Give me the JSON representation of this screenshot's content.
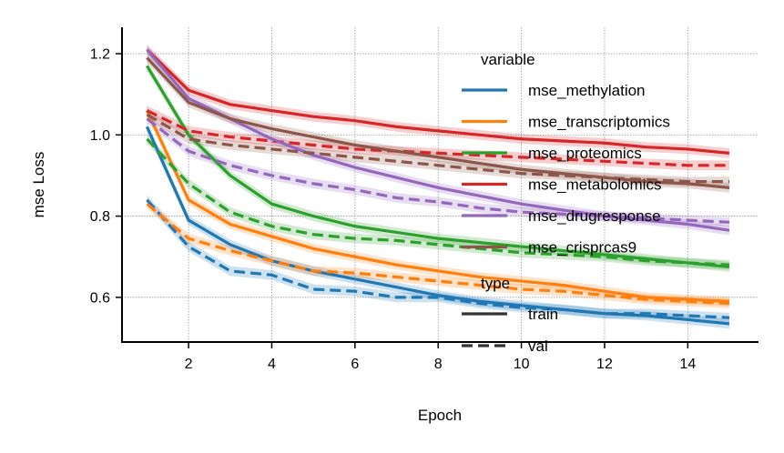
{
  "chart_data": {
    "type": "line",
    "xlabel": "Epoch",
    "ylabel": "mse Loss",
    "xlim": [
      0.4,
      15.7
    ],
    "ylim": [
      0.49,
      1.265
    ],
    "xticks": [
      2,
      4,
      6,
      8,
      10,
      12,
      14
    ],
    "yticks": [
      0.6,
      0.8,
      1.0,
      1.2
    ],
    "grid": true,
    "legend_position": "upper-right",
    "legend": {
      "variable_title": "variable",
      "type_title": "type",
      "types": [
        {
          "name": "train",
          "dash": "solid"
        },
        {
          "name": "val",
          "dash": "dashed"
        }
      ]
    },
    "x": [
      1,
      2,
      3,
      4,
      5,
      6,
      7,
      8,
      9,
      10,
      11,
      12,
      13,
      14,
      15
    ],
    "series": [
      {
        "name": "mse_methylation",
        "color": "#1f77b4",
        "train": [
          1.02,
          0.79,
          0.73,
          0.69,
          0.665,
          0.645,
          0.625,
          0.605,
          0.59,
          0.58,
          0.57,
          0.56,
          0.555,
          0.545,
          0.535
        ],
        "val": [
          0.84,
          0.725,
          0.665,
          0.655,
          0.62,
          0.615,
          0.6,
          0.6,
          0.585,
          0.575,
          0.57,
          0.56,
          0.56,
          0.555,
          0.55
        ]
      },
      {
        "name": "mse_transcriptomics",
        "color": "#ff7f0e",
        "train": [
          1.06,
          0.84,
          0.78,
          0.75,
          0.72,
          0.7,
          0.68,
          0.665,
          0.65,
          0.64,
          0.63,
          0.615,
          0.6,
          0.595,
          0.59
        ],
        "val": [
          0.83,
          0.745,
          0.715,
          0.69,
          0.665,
          0.66,
          0.65,
          0.64,
          0.63,
          0.62,
          0.615,
          0.605,
          0.595,
          0.59,
          0.585
        ]
      },
      {
        "name": "mse_proteomics",
        "color": "#2ca02c",
        "train": [
          1.17,
          1.0,
          0.9,
          0.83,
          0.8,
          0.775,
          0.76,
          0.745,
          0.735,
          0.725,
          0.715,
          0.705,
          0.695,
          0.685,
          0.675
        ],
        "val": [
          0.99,
          0.88,
          0.81,
          0.775,
          0.755,
          0.745,
          0.74,
          0.73,
          0.72,
          0.71,
          0.705,
          0.7,
          0.69,
          0.685,
          0.68
        ]
      },
      {
        "name": "mse_metabolomics",
        "color": "#d62728",
        "train": [
          1.21,
          1.11,
          1.075,
          1.06,
          1.045,
          1.035,
          1.02,
          1.01,
          1.0,
          0.99,
          0.985,
          0.98,
          0.97,
          0.965,
          0.955
        ],
        "val": [
          1.06,
          1.01,
          0.995,
          0.985,
          0.975,
          0.965,
          0.96,
          0.955,
          0.95,
          0.945,
          0.94,
          0.935,
          0.93,
          0.925,
          0.925
        ]
      },
      {
        "name": "mse_drugresponse",
        "color": "#9467bd",
        "train": [
          1.21,
          1.09,
          1.04,
          0.99,
          0.95,
          0.92,
          0.895,
          0.87,
          0.85,
          0.83,
          0.815,
          0.8,
          0.79,
          0.78,
          0.765
        ],
        "val": [
          1.04,
          0.96,
          0.925,
          0.9,
          0.88,
          0.865,
          0.845,
          0.835,
          0.82,
          0.81,
          0.805,
          0.8,
          0.795,
          0.79,
          0.785
        ]
      },
      {
        "name": "mse_crisprcas9",
        "color": "#8c564b",
        "train": [
          1.19,
          1.08,
          1.04,
          1.015,
          0.995,
          0.975,
          0.96,
          0.945,
          0.93,
          0.915,
          0.905,
          0.895,
          0.885,
          0.88,
          0.87
        ],
        "val": [
          1.05,
          0.99,
          0.975,
          0.965,
          0.955,
          0.945,
          0.935,
          0.925,
          0.915,
          0.905,
          0.9,
          0.895,
          0.89,
          0.885,
          0.885
        ]
      }
    ]
  }
}
